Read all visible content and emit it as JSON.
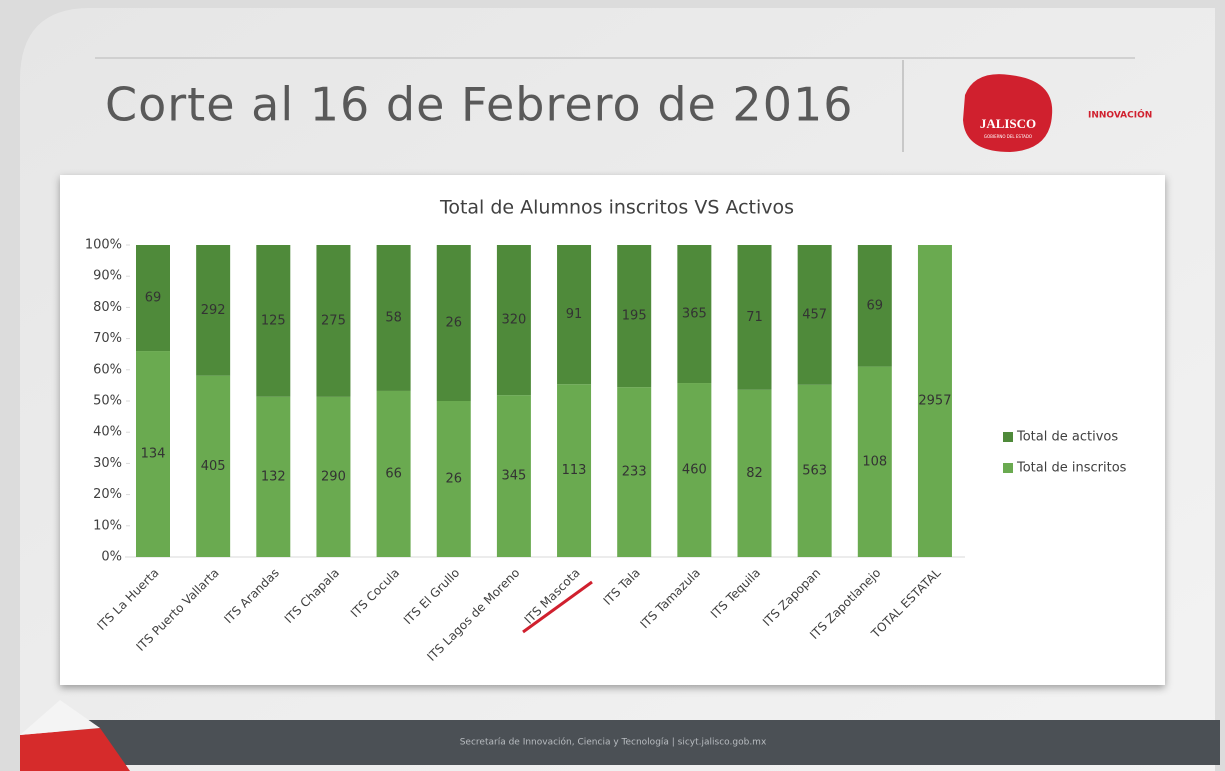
{
  "slide": {
    "title": "Corte al 16 de Febrero de 2016",
    "logo_text": "JALISCO",
    "logo_subtext": "GOBIERNO DEL ESTADO",
    "brand": "INNOVACIÓN",
    "footer": "Secretaría de Innovación, Ciencia y Tecnología | sicyt.jalisco.gob.mx"
  },
  "chart_data": {
    "type": "bar",
    "stacking": "percent",
    "title": "Total de Alumnos inscritos VS Activos",
    "categories": [
      "ITS La Huerta",
      "ITS Puerto Vallarta",
      "ITS Arandas",
      "ITS Chapala",
      "ITS Cocula",
      "ITS El Grullo",
      "ITS Lagos de Moreno",
      "ITS Mascota",
      "ITS Tala",
      "ITS Tamazula",
      "ITS Tequila",
      "ITS Zapopan",
      "ITS Zapotlanejo",
      "TOTAL ESTATAL"
    ],
    "series": [
      {
        "name": "Total de inscritos",
        "color": "#6aaa50",
        "values": [
          134,
          405,
          132,
          290,
          66,
          26,
          345,
          113,
          233,
          460,
          82,
          563,
          108,
          2957
        ]
      },
      {
        "name": "Total de activos",
        "color": "#4f8a3a",
        "values": [
          69,
          292,
          125,
          275,
          58,
          26,
          320,
          91,
          195,
          365,
          71,
          457,
          69,
          null
        ]
      }
    ],
    "ylim": [
      0,
      100
    ],
    "yticks": [
      {
        "value": 0,
        "label": "0%"
      },
      {
        "value": 10,
        "label": "10%"
      },
      {
        "value": 20,
        "label": "20%"
      },
      {
        "value": 30,
        "label": "30%"
      },
      {
        "value": 40,
        "label": "40%"
      },
      {
        "value": 50,
        "label": "50%"
      },
      {
        "value": 60,
        "label": "60%"
      },
      {
        "value": 70,
        "label": "70%"
      },
      {
        "value": 80,
        "label": "80%"
      },
      {
        "value": 90,
        "label": "90%"
      },
      {
        "value": 100,
        "label": "100%"
      }
    ],
    "grid": false,
    "legend": "right"
  }
}
